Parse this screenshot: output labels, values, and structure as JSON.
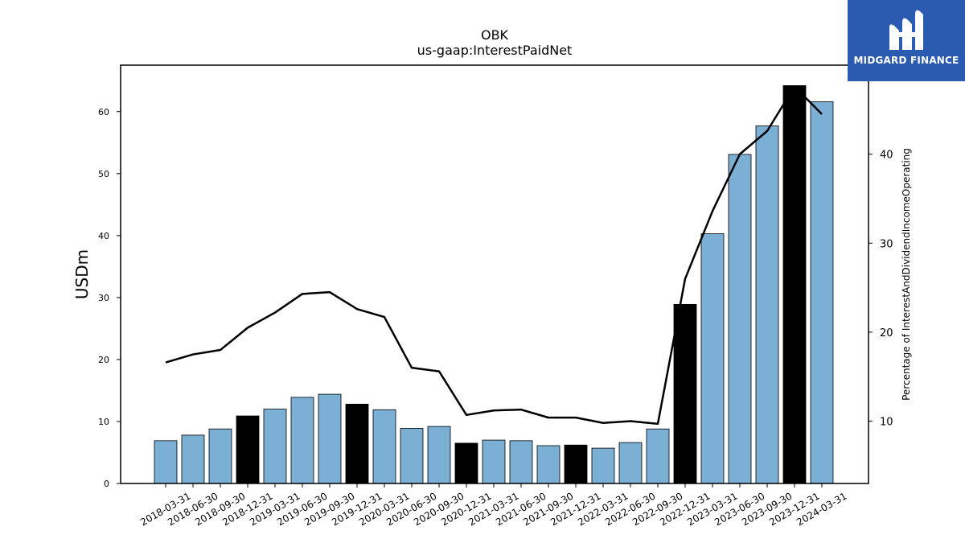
{
  "title": "OBK",
  "subtitle": "us-gaap:InterestPaidNet",
  "logo": {
    "text": "MIDGARD FINANCE",
    "icon": "midgard-logo-icon",
    "bg_color": "#2b5bb0"
  },
  "chart_data": {
    "type": "bar",
    "title": "OBK",
    "subtitle": "us-gaap:InterestPaidNet",
    "ylabel": "USDm",
    "y2label": "Percentage of InterestAndDividendIncomeOperating",
    "ylim": [
      0,
      67.5
    ],
    "y2lim": [
      3,
      50
    ],
    "yticks": [
      0,
      10,
      20,
      30,
      40,
      50,
      60
    ],
    "y2ticks": [
      10,
      20,
      30,
      40
    ],
    "grid": false,
    "categories": [
      "2018-03-31",
      "2018-06-30",
      "2018-09-30",
      "2018-12-31",
      "2019-03-31",
      "2019-06-30",
      "2019-09-30",
      "2019-12-31",
      "2020-03-31",
      "2020-06-30",
      "2020-09-30",
      "2020-12-31",
      "2021-03-31",
      "2021-06-30",
      "2021-09-30",
      "2021-12-31",
      "2022-03-31",
      "2022-06-30",
      "2022-09-30",
      "2022-12-31",
      "2023-03-31",
      "2023-06-30",
      "2023-09-30",
      "2023-12-31",
      "2024-03-31"
    ],
    "series": [
      {
        "type": "bar",
        "axis": "left",
        "values": [
          6.9,
          7.8,
          8.8,
          10.9,
          12.0,
          13.9,
          14.4,
          12.8,
          11.9,
          8.9,
          9.2,
          6.5,
          7.0,
          6.9,
          6.1,
          6.2,
          5.7,
          6.6,
          8.8,
          28.9,
          40.3,
          53.1,
          57.7,
          64.2,
          61.6
        ],
        "colors": [
          "#7bafd4",
          "#7bafd4",
          "#7bafd4",
          "#000000",
          "#7bafd4",
          "#7bafd4",
          "#7bafd4",
          "#000000",
          "#7bafd4",
          "#7bafd4",
          "#7bafd4",
          "#000000",
          "#7bafd4",
          "#7bafd4",
          "#7bafd4",
          "#000000",
          "#7bafd4",
          "#7bafd4",
          "#7bafd4",
          "#000000",
          "#7bafd4",
          "#7bafd4",
          "#7bafd4",
          "#000000",
          "#7bafd4"
        ]
      },
      {
        "type": "line",
        "axis": "right",
        "color": "#000000",
        "values": [
          16.6,
          17.5,
          18.0,
          20.5,
          22.2,
          24.3,
          24.5,
          22.6,
          21.7,
          16.0,
          15.6,
          10.7,
          11.2,
          11.3,
          10.4,
          10.4,
          9.8,
          10.0,
          9.7,
          26.0,
          33.6,
          40.0,
          42.6,
          47.6,
          44.5
        ]
      }
    ]
  }
}
